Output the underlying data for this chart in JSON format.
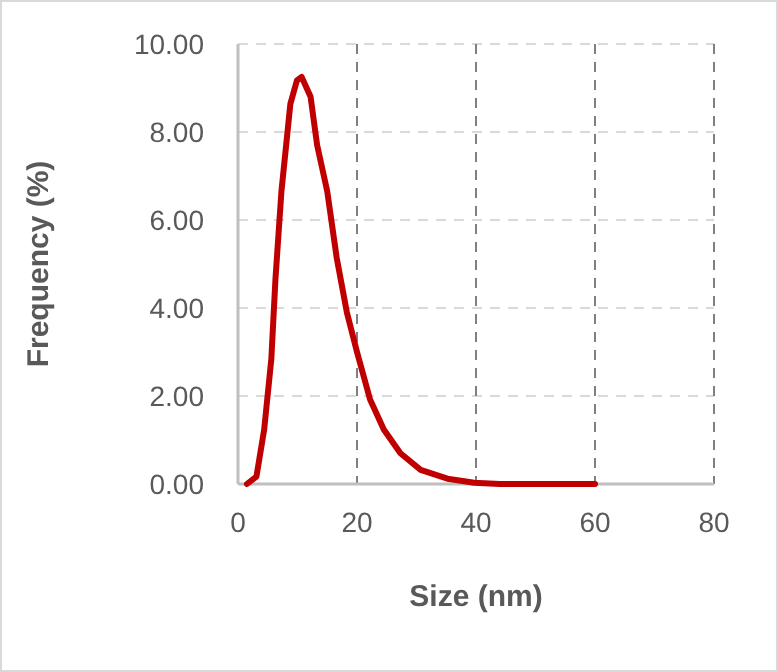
{
  "chart_data": {
    "type": "line",
    "xlabel": "Size (nm)",
    "ylabel": "Frequency (%)",
    "x": [
      1.5,
      3.1,
      4.4,
      5.6,
      6.3,
      7.3,
      8.8,
      9.9,
      10.7,
      12.2,
      13.3,
      15,
      16.6,
      18.3,
      20,
      22.2,
      24.5,
      27.3,
      30.7,
      35.2,
      39.7,
      44,
      50,
      60
    ],
    "series": [
      {
        "color": "#c00000",
        "values": [
          0,
          0.17,
          1.24,
          2.84,
          4.67,
          6.65,
          8.64,
          9.17,
          9.25,
          8.8,
          7.7,
          6.65,
          5.13,
          3.9,
          3.0,
          1.92,
          1.24,
          0.7,
          0.32,
          0.12,
          0.03,
          0,
          0,
          0
        ]
      }
    ],
    "xlim": [
      0,
      80
    ],
    "xticks": [
      0,
      20,
      40,
      60,
      80
    ],
    "ylim": [
      0,
      10
    ],
    "yticks": [
      {
        "value": 0,
        "label": "0.00"
      },
      {
        "value": 2,
        "label": "2.00"
      },
      {
        "value": 4,
        "label": "4.00"
      },
      {
        "value": 6,
        "label": "6.00"
      },
      {
        "value": 8,
        "label": "8.00"
      },
      {
        "value": 10,
        "label": "10.00"
      }
    ],
    "grid": true
  }
}
